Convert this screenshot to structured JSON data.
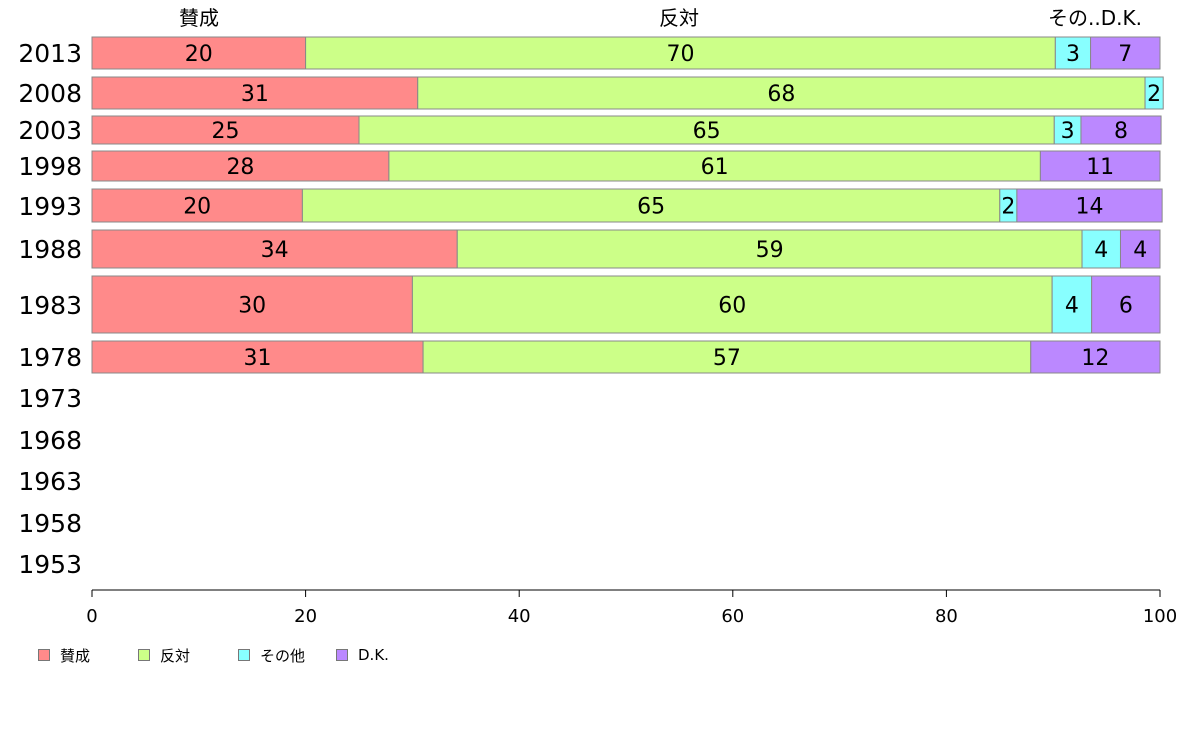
{
  "chart_data": {
    "type": "bar",
    "orientation": "horizontal",
    "stacked": true,
    "top_labels": [
      "賛成",
      "反対",
      "その..D.K."
    ],
    "categories": [
      "2013",
      "2008",
      "2003",
      "1998",
      "1993",
      "1988",
      "1983",
      "1978",
      "1973",
      "1968",
      "1963",
      "1958",
      "1953"
    ],
    "series": [
      {
        "name": "賛成",
        "color": "#ff8a8a",
        "values": [
          20,
          31,
          25,
          28,
          20,
          34,
          30,
          31,
          null,
          null,
          null,
          null,
          null
        ]
      },
      {
        "name": "反対",
        "color": "#ccff88",
        "values": [
          70,
          68,
          65,
          61,
          65,
          59,
          60,
          57,
          null,
          null,
          null,
          null,
          null
        ]
      },
      {
        "name": "その他",
        "color": "#88ffff",
        "values": [
          3,
          2,
          3,
          0,
          2,
          4,
          4,
          0,
          null,
          null,
          null,
          null,
          null
        ]
      },
      {
        "name": "D.K.",
        "color": "#bb88ff",
        "values": [
          7,
          0,
          8,
          11,
          14,
          4,
          6,
          12,
          null,
          null,
          null,
          null,
          null
        ]
      }
    ],
    "raw_widths": [
      [
        20,
        70.2,
        3.3,
        6.5
      ],
      [
        30.5,
        68.1,
        1.7,
        0
      ],
      [
        25,
        65.1,
        2.5,
        7.5
      ],
      [
        27.8,
        61.0,
        0,
        11.2
      ],
      [
        19.7,
        65.3,
        1.6,
        13.6
      ],
      [
        34.2,
        58.5,
        3.6,
        3.7
      ],
      [
        30.0,
        59.9,
        3.7,
        6.4
      ],
      [
        31.0,
        56.9,
        0,
        12.1
      ]
    ],
    "xlim": [
      0,
      100
    ],
    "xticks": [
      "0",
      "20",
      "40",
      "60",
      "80",
      "100"
    ],
    "grid": false,
    "legend_position": "bottom-left"
  }
}
